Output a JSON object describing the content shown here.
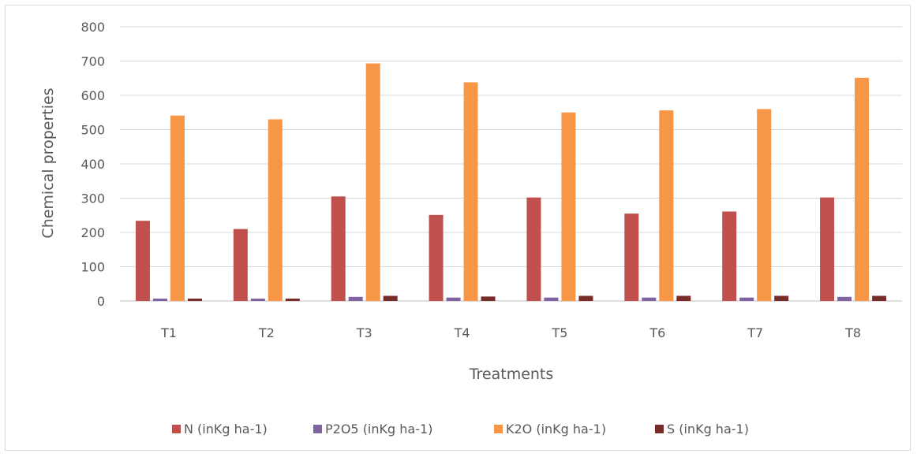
{
  "chart_data": {
    "type": "bar",
    "title": "",
    "xlabel": "Treatments",
    "ylabel": "Chemical properties",
    "ylim": [
      0,
      800
    ],
    "yticks": [
      0,
      100,
      200,
      300,
      400,
      500,
      600,
      700,
      800
    ],
    "grid": true,
    "legend_position": "bottom",
    "categories": [
      "T1",
      "T2",
      "T3",
      "T4",
      "T5",
      "T6",
      "T7",
      "T8"
    ],
    "series": [
      {
        "name": "N (inKg ha-1)",
        "color": "#c0504d",
        "values": [
          234,
          210,
          305,
          251,
          302,
          255,
          261,
          302
        ]
      },
      {
        "name": "P2O5 (inKg ha-1)",
        "color": "#8064a2",
        "values": [
          7,
          7,
          12,
          10,
          10,
          10,
          10,
          12
        ]
      },
      {
        "name": "K2O (inKg ha-1)",
        "color": "#f79646",
        "values": [
          541,
          530,
          693,
          638,
          550,
          556,
          560,
          651
        ]
      },
      {
        "name": "S (inKg ha-1)",
        "color": "#772c2a",
        "values": [
          7,
          7,
          15,
          13,
          15,
          15,
          15,
          15
        ]
      }
    ]
  }
}
